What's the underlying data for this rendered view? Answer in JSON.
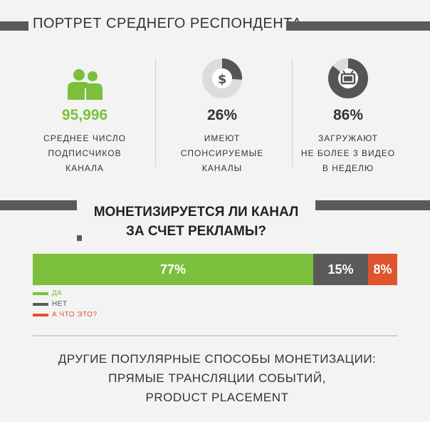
{
  "header": {
    "title": "ПОРТРЕТ СРЕДНЕГО РЕСПОНДЕНТА"
  },
  "stats": [
    {
      "icon": "users-icon",
      "value": "95,996",
      "desc": [
        "СРЕДНЕЕ ЧИСЛО",
        "ПОДПИСЧИКОВ",
        "КАНАЛА"
      ],
      "color": "#7cbf3c"
    },
    {
      "icon": "dollar-donut-icon",
      "value": "26%",
      "desc": [
        "ИМЕЮТ",
        "СПОНСИРУЕМЫЕ",
        "КАНАЛЫ"
      ],
      "fraction": 0.26,
      "color": "#444444"
    },
    {
      "icon": "tv-donut-icon",
      "value": "86%",
      "desc": [
        "ЗАГРУЖАЮТ",
        "НЕ БОЛЕЕ 3 ВИДЕО",
        "В НЕДЕЛЮ"
      ],
      "fraction": 0.86,
      "color": "#444444"
    }
  ],
  "monetization": {
    "title_lines": [
      "МОНЕТИЗИРУЕТСЯ ЛИ КАНАЛ",
      "ЗА СЧЕТ РЕКЛАМЫ?"
    ],
    "segments": [
      {
        "label": "77%",
        "value": 77,
        "color": "#7cbf3c"
      },
      {
        "label": "15%",
        "value": 15,
        "color": "#5a5a5a"
      },
      {
        "label": "8%",
        "value": 8,
        "color": "#e0532f"
      }
    ],
    "legend": [
      {
        "label": "ДА",
        "color": "#7cbf3c"
      },
      {
        "label": "НЕТ",
        "color": "#5a5a5a"
      },
      {
        "label": "А ЧТО ЭТО?",
        "color": "#e0532f"
      }
    ]
  },
  "other": {
    "lines": [
      "ДРУГИЕ ПОПУЛЯРНЫЕ СПОСОБЫ МОНЕТИЗАЦИИ:",
      "ПРЯМЫЕ ТРАНСЛЯЦИИ СОБЫТИЙ,",
      "PRODUCT PLACEMENT"
    ]
  },
  "colors": {
    "accent_green": "#7cbf3c",
    "dark": "#5a5a5a",
    "red": "#e0532f",
    "background": "#f3f3f3"
  }
}
